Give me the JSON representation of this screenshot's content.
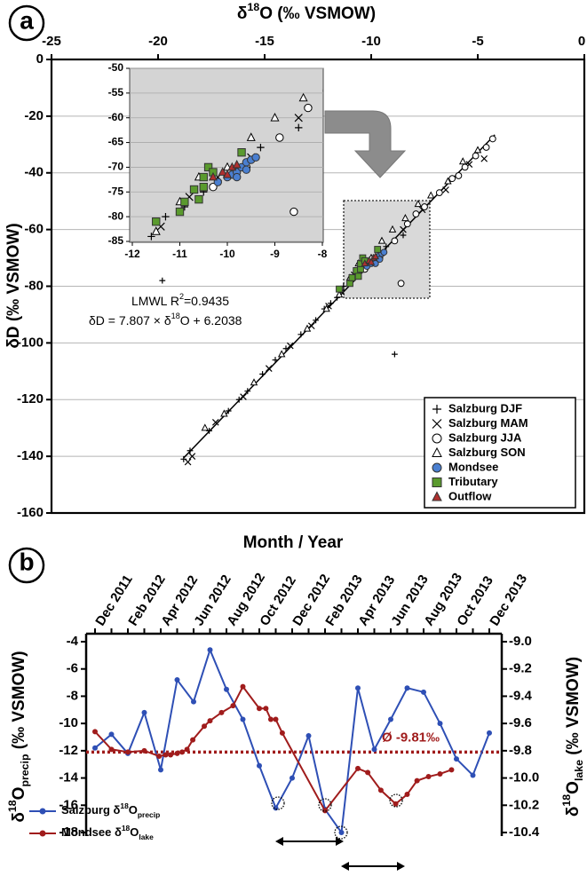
{
  "chart_data": [
    {
      "type": "scatter",
      "panel": "a",
      "xlabel": {
        "pre": "δ",
        "sup": "18",
        "post": "O (‰ VSMOW)"
      },
      "ylabel": "δD (‰ VSMOW)",
      "xlim": [
        -25,
        0
      ],
      "xticks": [
        -25,
        -20,
        -15,
        -10,
        -5,
        0
      ],
      "ylim": [
        -160,
        0
      ],
      "yticks": [
        0,
        -20,
        -40,
        -60,
        -80,
        -100,
        -120,
        -140,
        -160
      ],
      "grid": true,
      "legend": "lower right",
      "fit": {
        "slope": 7.807,
        "intercept": 6.2038,
        "xrange": [
          -18.8,
          -4.2
        ]
      },
      "annotation": {
        "line1": "LMWL R",
        "line1_sup": "2",
        "line1_end": "=0.9435",
        "line2": "δD = 7.807 × δ",
        "line2_sup": "18",
        "line2_end": "O + 6.2038"
      },
      "series": [
        {
          "name": "Salzburg DJF",
          "marker": "plus",
          "color": "#000000",
          "filled": false,
          "x": [
            -18.8,
            -18.5,
            -17.6,
            -16.7,
            -16.2,
            -15.8,
            -15.1,
            -14.5,
            -14.0,
            -13.3,
            -12.6,
            -12.2,
            -11.9,
            -11.6,
            -11.3,
            -10.9,
            -10.5,
            -9.3,
            -8.5,
            -19.8,
            -8.9
          ],
          "values": [
            -141,
            -138,
            -131,
            -124,
            -120,
            -117,
            -111,
            -106,
            -102,
            -97,
            -92,
            -88,
            -86,
            -84,
            -80,
            -78,
            -75,
            -66,
            -62,
            -78,
            -104
          ]
        },
        {
          "name": "Salzburg MAM",
          "marker": "x",
          "color": "#000000",
          "filled": false,
          "x": [
            -18.6,
            -18.4,
            -17.3,
            -16.0,
            -14.8,
            -13.8,
            -12.8,
            -12.0,
            -11.4,
            -10.8,
            -10.2,
            -9.5,
            -8.5,
            -7.6,
            -6.5,
            -5.4,
            -4.7,
            -7.0
          ],
          "values": [
            -142,
            -140,
            -128,
            -119,
            -109,
            -101,
            -94,
            -87,
            -82,
            -76,
            -72,
            -68,
            -60,
            -53,
            -46,
            -37,
            -35,
            -132
          ]
        },
        {
          "name": "Salzburg JJA",
          "marker": "circle",
          "color": "#000000",
          "filled": false,
          "x": [
            -10.3,
            -9.6,
            -8.9,
            -8.3,
            -7.5,
            -6.8,
            -6.2,
            -5.6,
            -5.1,
            -4.6,
            -4.3,
            -8.6,
            -7.9,
            -5.9
          ],
          "values": [
            -74,
            -70,
            -64,
            -58,
            -52,
            -47,
            -42,
            -38,
            -34,
            -31,
            -28,
            -79,
            -54.5,
            -41
          ]
        },
        {
          "name": "Salzburg SON",
          "marker": "triangle",
          "color": "#000000",
          "filled": false,
          "x": [
            -17.8,
            -16.9,
            -15.5,
            -14.2,
            -13.0,
            -12.1,
            -11.5,
            -11.0,
            -10.6,
            -10.0,
            -9.5,
            -9.0,
            -8.4,
            -7.8,
            -7.2,
            -6.4,
            -5.7,
            -5.0
          ],
          "values": [
            -130,
            -125,
            -114,
            -104,
            -95,
            -88,
            -83,
            -77,
            -72,
            -70,
            -64,
            -60,
            -56,
            -51,
            -48,
            -43,
            -36,
            -32
          ]
        },
        {
          "name": "Mondsee",
          "marker": "circle",
          "color": "#4a7fd0",
          "filled": true,
          "x": [
            -10.2,
            -10.0,
            -9.9,
            -9.8,
            -9.7,
            -9.6,
            -9.5,
            -9.4,
            -9.6,
            -9.8
          ],
          "values": [
            -73,
            -72,
            -71.5,
            -71,
            -70,
            -69,
            -68.5,
            -68,
            -70.5,
            -72
          ]
        },
        {
          "name": "Tributary",
          "marker": "square",
          "color": "#5a9a2e",
          "filled": true,
          "x": [
            -11.5,
            -11.0,
            -10.9,
            -10.7,
            -10.5,
            -10.5,
            -10.4,
            -10.3,
            -9.7,
            -10.6
          ],
          "values": [
            -81,
            -79,
            -77,
            -74.5,
            -74,
            -72,
            -70,
            -71,
            -67,
            -76.5
          ]
        },
        {
          "name": "Outflow",
          "marker": "triangle",
          "color": "#b0302f",
          "filled": true,
          "x": [
            -10.3,
            -10.1,
            -9.9,
            -9.8,
            -10.0
          ],
          "values": [
            -72,
            -71,
            -70,
            -69.5,
            -71.5
          ]
        }
      ]
    },
    {
      "type": "scatter",
      "inset_of": "a",
      "xlim": [
        -12,
        -8
      ],
      "xticks": [
        -12,
        -11,
        -10,
        -9,
        -8
      ],
      "ylim": [
        -85,
        -50
      ],
      "yticks": [
        -50,
        -55,
        -60,
        -65,
        -70,
        -75,
        -80,
        -85
      ],
      "grid": true
    },
    {
      "type": "line",
      "panel": "b",
      "title": "Month / Year",
      "categories": [
        "Dec 2011",
        null,
        "Feb 2012",
        null,
        "Apr 2012",
        null,
        "Jun 2012",
        null,
        "Aug 2012",
        null,
        "Oct 2012",
        null,
        "Dec 2012",
        null,
        "Feb 2013",
        null,
        "Apr 2013",
        null,
        "Jun 2013",
        null,
        "Aug 2013",
        null,
        "Oct 2013",
        null,
        "Dec 2013"
      ],
      "ylabel": {
        "pre": "δ",
        "sup": "18",
        "mid": "O",
        "sub": "precip",
        "post": " (‰ VSMOW)"
      },
      "y2label": {
        "pre": "δ",
        "sup": "18",
        "mid": "O",
        "sub": "lake",
        "post": " (‰ VSMOW)"
      },
      "ylim": [
        -18,
        -4
      ],
      "yticks": [
        -4,
        -6,
        -8,
        -10,
        -12,
        -14,
        -16,
        -18
      ],
      "y2lim": [
        -10.4,
        -9.0
      ],
      "y2ticks": [
        {
          "value": -9,
          "label": "-9.0"
        },
        -9.2,
        -9.4,
        -9.6,
        -9.8,
        {
          "value": -10,
          "label": "-10.0"
        },
        -10.2,
        -10.4
      ],
      "mean": {
        "value": -9.81,
        "label": "Ø -9.81‰",
        "axis": "y2",
        "color": "#a01c1c"
      },
      "legend": "lower left",
      "series": [
        {
          "name": "Salzburg δ",
          "name_sup": "18",
          "name_mid": "O",
          "name_sub": "precip",
          "color": "#2e4fb5",
          "values": [
            -11.8,
            -10.8,
            -12.2,
            -9.2,
            -13.4,
            -6.8,
            -8.4,
            -4.6,
            -7.5,
            -9.7,
            -13.1,
            -16.2,
            -14.0,
            -10.9,
            -16.3,
            -18.0,
            -7.4,
            -11.9,
            -9.7,
            -7.4,
            -7.7,
            -10.0,
            -12.6,
            -13.8,
            -10.7
          ]
        },
        {
          "name": "Mondsee δ",
          "name_sup": "18",
          "name_mid": "O",
          "name_sub": "lake",
          "color": "#a01c1c",
          "axis": "y2",
          "x": [
            0,
            1,
            2,
            3,
            3.9,
            4.3,
            4.6,
            5,
            5.3,
            5.6,
            5.95,
            6.65,
            7,
            7.7,
            8.4,
            9,
            10,
            10.4,
            10.7,
            11,
            11.4,
            14,
            16,
            16.6,
            17.4,
            18.3,
            19,
            19.6,
            20.3,
            21,
            21.7
          ],
          "values": [
            -9.66,
            -9.79,
            -9.81,
            -9.8,
            -9.84,
            -9.83,
            -9.83,
            -9.82,
            -9.81,
            -9.79,
            -9.72,
            -9.62,
            -9.58,
            -9.52,
            -9.47,
            -9.33,
            -9.49,
            -9.49,
            -9.57,
            -9.57,
            -9.67,
            -10.24,
            -9.93,
            -9.96,
            -10.09,
            -10.19,
            -10.12,
            -10.02,
            -9.99,
            -9.97,
            -9.94
          ]
        }
      ]
    }
  ]
}
